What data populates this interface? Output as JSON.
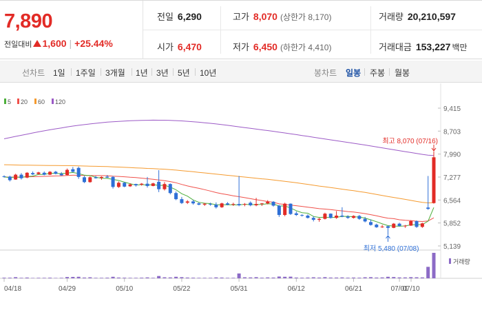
{
  "quote": {
    "price": "7,890",
    "change_label": "전일대비",
    "change_amount": "1,600",
    "change_percent": "+25.44%"
  },
  "stats": {
    "prev_close": {
      "label": "전일",
      "value": "6,290"
    },
    "open": {
      "label": "시가",
      "value": "6,470"
    },
    "high": {
      "label": "고가",
      "value": "8,070",
      "limit_label": "(상한가 8,170)"
    },
    "low": {
      "label": "저가",
      "value": "6,450",
      "limit_label": "(하한가 4,410)"
    },
    "volume": {
      "label": "거래량",
      "value": "20,210,597"
    },
    "amount": {
      "label": "거래대금",
      "value": "153,227",
      "unit": "백만"
    }
  },
  "toolbar": {
    "line_label": "선차트",
    "line_periods": [
      "1일",
      "1주일",
      "3개월",
      "1년",
      "3년",
      "5년",
      "10년"
    ],
    "candle_label": "봉차트",
    "candle_periods": [
      "일봉",
      "주봉",
      "월봉"
    ],
    "candle_active": "일봉"
  },
  "colors": {
    "up": "#e22b26",
    "down": "#2e6fd6",
    "ma5": "#4caf3a",
    "ma20": "#f0504a",
    "ma60": "#f59a2e",
    "ma120": "#9b59c6"
  },
  "chart_data": {
    "type": "candlestick",
    "legend": [
      "5",
      "20",
      "60",
      "120"
    ],
    "y_ticks": [
      "9,415",
      "8,703",
      "7,990",
      "7,277",
      "6,564",
      "5,852",
      "5,139"
    ],
    "ylim": [
      5139,
      9415
    ],
    "x_ticks": [
      "04/18",
      "04/29",
      "05/10",
      "05/22",
      "05/31",
      "06/12",
      "06/21",
      "07/01",
      "07/10"
    ],
    "high_annotation": "최고 8,070 (07/16)",
    "low_annotation": "최저 5,480 (07/08)",
    "volume_label": "거래량",
    "candles": [
      [
        7300,
        7330,
        7260,
        7280
      ],
      [
        7290,
        7320,
        7140,
        7180
      ],
      [
        7200,
        7380,
        7190,
        7350
      ],
      [
        7350,
        7400,
        7200,
        7240
      ],
      [
        7260,
        7430,
        7240,
        7410
      ],
      [
        7400,
        7450,
        7340,
        7360
      ],
      [
        7370,
        7440,
        7350,
        7420
      ],
      [
        7410,
        7450,
        7330,
        7350
      ],
      [
        7350,
        7460,
        7340,
        7440
      ],
      [
        7440,
        7470,
        7360,
        7380
      ],
      [
        7380,
        7430,
        7320,
        7330
      ],
      [
        7340,
        7540,
        7330,
        7500
      ],
      [
        7520,
        7590,
        7420,
        7440
      ],
      [
        7560,
        7600,
        7220,
        7280
      ],
      [
        7270,
        7310,
        7090,
        7120
      ],
      [
        7120,
        7300,
        7100,
        7270
      ],
      [
        7270,
        7310,
        7230,
        7240
      ],
      [
        7250,
        7300,
        7190,
        7280
      ],
      [
        7290,
        7340,
        7250,
        7260
      ],
      [
        7280,
        7310,
        6920,
        6970
      ],
      [
        6970,
        7140,
        6940,
        7100
      ],
      [
        7100,
        7120,
        6960,
        6980
      ],
      [
        6990,
        7080,
        6970,
        7050
      ],
      [
        7060,
        7070,
        6980,
        7020
      ],
      [
        7040,
        7090,
        7010,
        7070
      ],
      [
        7070,
        7280,
        6950,
        7000
      ],
      [
        7000,
        7100,
        6990,
        7080
      ],
      [
        7130,
        7490,
        6810,
        6900
      ],
      [
        6900,
        7120,
        6860,
        7060
      ],
      [
        7060,
        7080,
        6740,
        6780
      ],
      [
        6780,
        6830,
        6560,
        6590
      ],
      [
        6590,
        6660,
        6440,
        6470
      ],
      [
        6480,
        6560,
        6440,
        6520
      ],
      [
        6520,
        6570,
        6420,
        6460
      ],
      [
        6460,
        6490,
        6400,
        6420
      ],
      [
        6420,
        6470,
        6380,
        6450
      ],
      [
        6440,
        6480,
        6390,
        6420
      ],
      [
        6420,
        6490,
        6300,
        6340
      ],
      [
        6340,
        6480,
        6320,
        6460
      ],
      [
        6460,
        6500,
        6400,
        6420
      ],
      [
        6420,
        6480,
        6380,
        6440
      ],
      [
        6440,
        7310,
        6370,
        6400
      ],
      [
        6420,
        6470,
        6370,
        6440
      ],
      [
        6480,
        6520,
        6370,
        6400
      ],
      [
        6400,
        6630,
        6370,
        6440
      ],
      [
        6440,
        6470,
        6380,
        6460
      ],
      [
        6460,
        6560,
        6430,
        6510
      ],
      [
        6510,
        6530,
        6360,
        6390
      ],
      [
        6390,
        6410,
        6040,
        6100
      ],
      [
        6100,
        6480,
        6060,
        6450
      ],
      [
        6450,
        6460,
        6100,
        6130
      ],
      [
        6150,
        6210,
        6070,
        6100
      ],
      [
        6100,
        6120,
        6050,
        6080
      ],
      [
        6080,
        6120,
        5990,
        6010
      ],
      [
        6010,
        6060,
        5900,
        5950
      ],
      [
        5950,
        6010,
        5890,
        5980
      ],
      [
        5980,
        6170,
        5960,
        6140
      ],
      [
        6140,
        6150,
        5990,
        6010
      ],
      [
        6010,
        6220,
        5980,
        6080
      ],
      [
        6080,
        6340,
        6030,
        6050
      ],
      [
        6050,
        6090,
        5980,
        6010
      ],
      [
        6010,
        6090,
        5990,
        6070
      ],
      [
        6070,
        6100,
        5950,
        5980
      ],
      [
        5980,
        6040,
        5870,
        5900
      ],
      [
        5880,
        5960,
        5770,
        5790
      ],
      [
        5800,
        5830,
        5700,
        5720
      ],
      [
        5720,
        5790,
        5700,
        5740
      ],
      [
        5750,
        5770,
        5480,
        5700
      ],
      [
        5700,
        5850,
        5690,
        5830
      ],
      [
        5830,
        5860,
        5740,
        5760
      ],
      [
        5760,
        5790,
        5700,
        5770
      ],
      [
        5770,
        5940,
        5760,
        5910
      ],
      [
        5910,
        5930,
        5700,
        5730
      ],
      [
        5730,
        5860,
        5700,
        5840
      ],
      [
        6330,
        7310,
        6260,
        6290
      ],
      [
        6470,
        8070,
        6450,
        7890
      ]
    ],
    "volume": [
      5,
      5,
      9,
      4,
      6,
      3,
      4,
      4,
      5,
      3,
      4,
      10,
      11,
      12,
      6,
      8,
      4,
      4,
      5,
      12,
      6,
      5,
      4,
      4,
      5,
      7,
      4,
      18,
      8,
      7,
      12,
      9,
      6,
      5,
      4,
      4,
      4,
      7,
      6,
      4,
      4,
      38,
      8,
      7,
      9,
      5,
      7,
      6,
      14,
      12,
      13,
      6,
      5,
      6,
      8,
      6,
      9,
      6,
      6,
      7,
      5,
      6,
      5,
      8,
      9,
      6,
      7,
      12,
      10,
      7,
      7,
      9,
      8,
      7,
      90,
      200
    ]
  }
}
